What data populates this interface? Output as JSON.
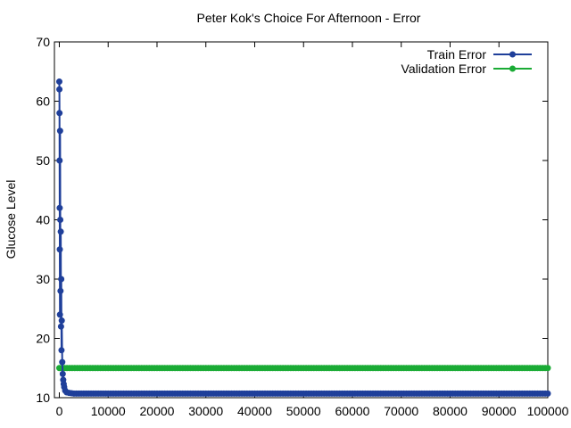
{
  "chart_data": {
    "type": "line",
    "title": "Peter Kok's Choice For Afternoon - Error",
    "xlabel": "",
    "ylabel": "Glucose Level",
    "xlim": [
      -1000,
      100000
    ],
    "ylim": [
      10,
      70
    ],
    "x_ticks": [
      "0",
      "10000",
      "20000",
      "30000",
      "40000",
      "50000",
      "60000",
      "70000",
      "80000",
      "90000",
      "100000"
    ],
    "y_ticks": [
      "10",
      "20",
      "30",
      "40",
      "50",
      "60",
      "70"
    ],
    "legend_position": "top-right",
    "grid": false,
    "series": [
      {
        "name": "Train Error",
        "color": "#1f3f9a",
        "x": [
          0,
          20,
          40,
          60,
          80,
          100,
          130,
          160,
          200,
          250,
          300,
          350,
          400,
          450,
          500,
          600,
          700,
          800,
          900,
          1000,
          1200,
          1500,
          2000,
          3000,
          5000,
          10000,
          20000,
          30000,
          40000,
          50000,
          60000,
          70000,
          80000,
          90000,
          100000
        ],
        "y": [
          63.3,
          62.0,
          58.0,
          50.0,
          42.0,
          35.0,
          24.0,
          55.0,
          40.0,
          28.0,
          38.0,
          22.0,
          30.0,
          18.0,
          23.0,
          16.0,
          14.0,
          13.0,
          12.3,
          11.8,
          11.2,
          10.9,
          10.8,
          10.7,
          10.7,
          10.7,
          10.7,
          10.7,
          10.7,
          10.7,
          10.7,
          10.7,
          10.7,
          10.7,
          10.7
        ]
      },
      {
        "name": "Validation Error",
        "color": "#1aab35",
        "x": [
          0,
          10000,
          20000,
          30000,
          40000,
          50000,
          60000,
          70000,
          80000,
          90000,
          100000
        ],
        "y": [
          15.0,
          15.0,
          15.0,
          15.0,
          15.0,
          15.0,
          15.0,
          15.0,
          15.0,
          15.0,
          15.0
        ]
      }
    ]
  }
}
